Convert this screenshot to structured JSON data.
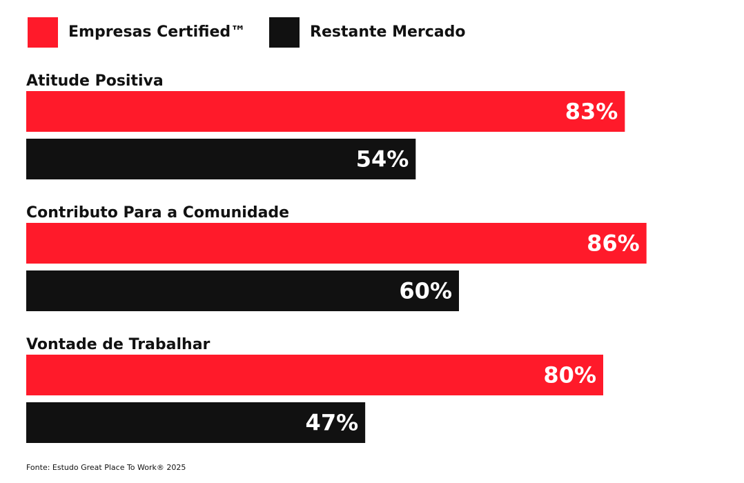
{
  "chart_data": {
    "type": "bar",
    "orientation": "horizontal",
    "categories": [
      "Atitude Positiva",
      "Contributo Para a Comunidade",
      "Vontade de Trabalhar"
    ],
    "series": [
      {
        "name": "Empresas Certified™",
        "color": "#ff1a2a",
        "values": [
          83,
          86,
          80
        ],
        "value_labels": [
          "83%",
          "86%",
          "80%"
        ]
      },
      {
        "name": "Restante Mercado",
        "color": "#111111",
        "values": [
          54,
          60,
          47
        ],
        "value_labels": [
          "54%",
          "60%",
          "47%"
        ]
      }
    ],
    "source": "Fonte: Estudo Great Place To Work® 2025"
  }
}
